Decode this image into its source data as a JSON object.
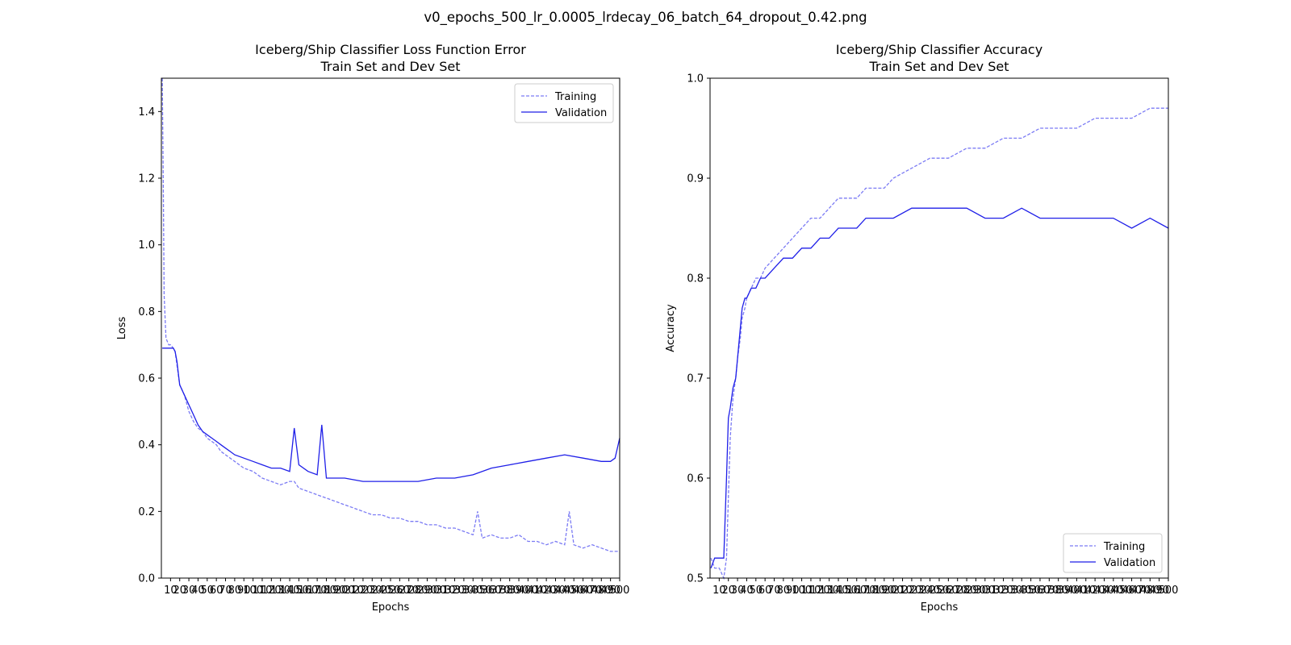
{
  "figure": {
    "suptitle": "v0_epochs_500_lr_0.0005_lrdecay_06_batch_64_dropout_0.42.png"
  },
  "colors": {
    "training": "#7b7bf4",
    "validation": "#1f1fe8"
  },
  "chart_data": [
    {
      "type": "line",
      "title": "Iceberg/Ship Classifier Loss Function Error\nTrain Set and Dev Set",
      "xlabel": "Epochs",
      "ylabel": "Loss",
      "xlim": [
        0,
        500
      ],
      "ylim": [
        0.0,
        1.5
      ],
      "yticks": [
        0.0,
        0.2,
        0.4,
        0.6,
        0.8,
        1.0,
        1.2,
        1.4
      ],
      "xtick_step": 10,
      "xtick_label_step": 10,
      "legend": "top-right",
      "grid": false,
      "series": [
        {
          "name": "Training",
          "style": "dashed",
          "x": [
            1,
            2,
            3,
            5,
            8,
            10,
            13,
            15,
            17,
            20,
            25,
            30,
            35,
            40,
            45,
            50,
            55,
            60,
            65,
            70,
            75,
            80,
            90,
            100,
            110,
            120,
            130,
            140,
            145,
            150,
            160,
            170,
            180,
            190,
            200,
            210,
            220,
            230,
            240,
            250,
            260,
            270,
            280,
            290,
            300,
            310,
            320,
            330,
            340,
            345,
            350,
            360,
            370,
            380,
            390,
            400,
            410,
            420,
            430,
            440,
            445,
            450,
            460,
            470,
            480,
            490,
            500
          ],
          "y": [
            1.5,
            1.2,
            0.85,
            0.72,
            0.7,
            0.7,
            0.69,
            0.68,
            0.64,
            0.58,
            0.55,
            0.5,
            0.47,
            0.45,
            0.44,
            0.42,
            0.41,
            0.4,
            0.38,
            0.37,
            0.36,
            0.35,
            0.33,
            0.32,
            0.3,
            0.29,
            0.28,
            0.29,
            0.29,
            0.27,
            0.26,
            0.25,
            0.24,
            0.23,
            0.22,
            0.21,
            0.2,
            0.19,
            0.19,
            0.18,
            0.18,
            0.17,
            0.17,
            0.16,
            0.16,
            0.15,
            0.15,
            0.14,
            0.13,
            0.2,
            0.12,
            0.13,
            0.12,
            0.12,
            0.13,
            0.11,
            0.11,
            0.1,
            0.11,
            0.1,
            0.2,
            0.1,
            0.09,
            0.1,
            0.09,
            0.08,
            0.08
          ]
        },
        {
          "name": "Validation",
          "style": "solid",
          "x": [
            1,
            5,
            10,
            13,
            15,
            17,
            20,
            25,
            30,
            35,
            40,
            45,
            50,
            55,
            60,
            65,
            70,
            75,
            80,
            90,
            100,
            110,
            120,
            130,
            140,
            145,
            150,
            160,
            170,
            175,
            180,
            190,
            200,
            220,
            240,
            260,
            280,
            300,
            320,
            340,
            360,
            380,
            400,
            420,
            440,
            460,
            480,
            490,
            495,
            500
          ],
          "y": [
            0.69,
            0.69,
            0.69,
            0.69,
            0.68,
            0.65,
            0.58,
            0.55,
            0.52,
            0.49,
            0.46,
            0.44,
            0.43,
            0.42,
            0.41,
            0.4,
            0.39,
            0.38,
            0.37,
            0.36,
            0.35,
            0.34,
            0.33,
            0.33,
            0.32,
            0.45,
            0.34,
            0.32,
            0.31,
            0.46,
            0.3,
            0.3,
            0.3,
            0.29,
            0.29,
            0.29,
            0.29,
            0.3,
            0.3,
            0.31,
            0.33,
            0.34,
            0.35,
            0.36,
            0.37,
            0.36,
            0.35,
            0.35,
            0.36,
            0.42
          ]
        }
      ]
    },
    {
      "type": "line",
      "title": "Iceberg/Ship Classifier Accuracy\nTrain Set and Dev Set",
      "xlabel": "Epochs",
      "ylabel": "Accuracy",
      "xlim": [
        0,
        500
      ],
      "ylim": [
        0.5,
        1.0
      ],
      "yticks": [
        0.5,
        0.6,
        0.7,
        0.8,
        0.9,
        1.0
      ],
      "xtick_step": 10,
      "xtick_label_step": 10,
      "legend": "bottom-right",
      "grid": false,
      "series": [
        {
          "name": "Training",
          "style": "dashed",
          "x": [
            1,
            5,
            10,
            15,
            18,
            20,
            22,
            25,
            28,
            30,
            33,
            35,
            38,
            40,
            45,
            50,
            55,
            60,
            70,
            80,
            90,
            100,
            110,
            120,
            130,
            140,
            150,
            160,
            170,
            180,
            190,
            200,
            220,
            240,
            260,
            280,
            300,
            320,
            340,
            360,
            380,
            400,
            420,
            440,
            460,
            480,
            500
          ],
          "y": [
            0.52,
            0.51,
            0.51,
            0.5,
            0.52,
            0.58,
            0.64,
            0.68,
            0.7,
            0.72,
            0.74,
            0.76,
            0.77,
            0.78,
            0.79,
            0.8,
            0.8,
            0.81,
            0.82,
            0.83,
            0.84,
            0.85,
            0.86,
            0.86,
            0.87,
            0.88,
            0.88,
            0.88,
            0.89,
            0.89,
            0.89,
            0.9,
            0.91,
            0.92,
            0.92,
            0.93,
            0.93,
            0.94,
            0.94,
            0.95,
            0.95,
            0.95,
            0.96,
            0.96,
            0.96,
            0.97,
            0.97
          ]
        },
        {
          "name": "Validation",
          "style": "solid",
          "x": [
            1,
            5,
            10,
            15,
            18,
            20,
            22,
            25,
            28,
            30,
            33,
            35,
            38,
            40,
            45,
            50,
            55,
            60,
            70,
            80,
            90,
            100,
            110,
            120,
            130,
            140,
            150,
            160,
            170,
            180,
            190,
            200,
            220,
            240,
            260,
            280,
            300,
            320,
            340,
            360,
            380,
            400,
            420,
            440,
            460,
            480,
            500
          ],
          "y": [
            0.51,
            0.52,
            0.52,
            0.52,
            0.6,
            0.66,
            0.67,
            0.69,
            0.7,
            0.72,
            0.75,
            0.77,
            0.78,
            0.78,
            0.79,
            0.79,
            0.8,
            0.8,
            0.81,
            0.82,
            0.82,
            0.83,
            0.83,
            0.84,
            0.84,
            0.85,
            0.85,
            0.85,
            0.86,
            0.86,
            0.86,
            0.86,
            0.87,
            0.87,
            0.87,
            0.87,
            0.86,
            0.86,
            0.87,
            0.86,
            0.86,
            0.86,
            0.86,
            0.86,
            0.85,
            0.86,
            0.85
          ]
        }
      ]
    }
  ]
}
